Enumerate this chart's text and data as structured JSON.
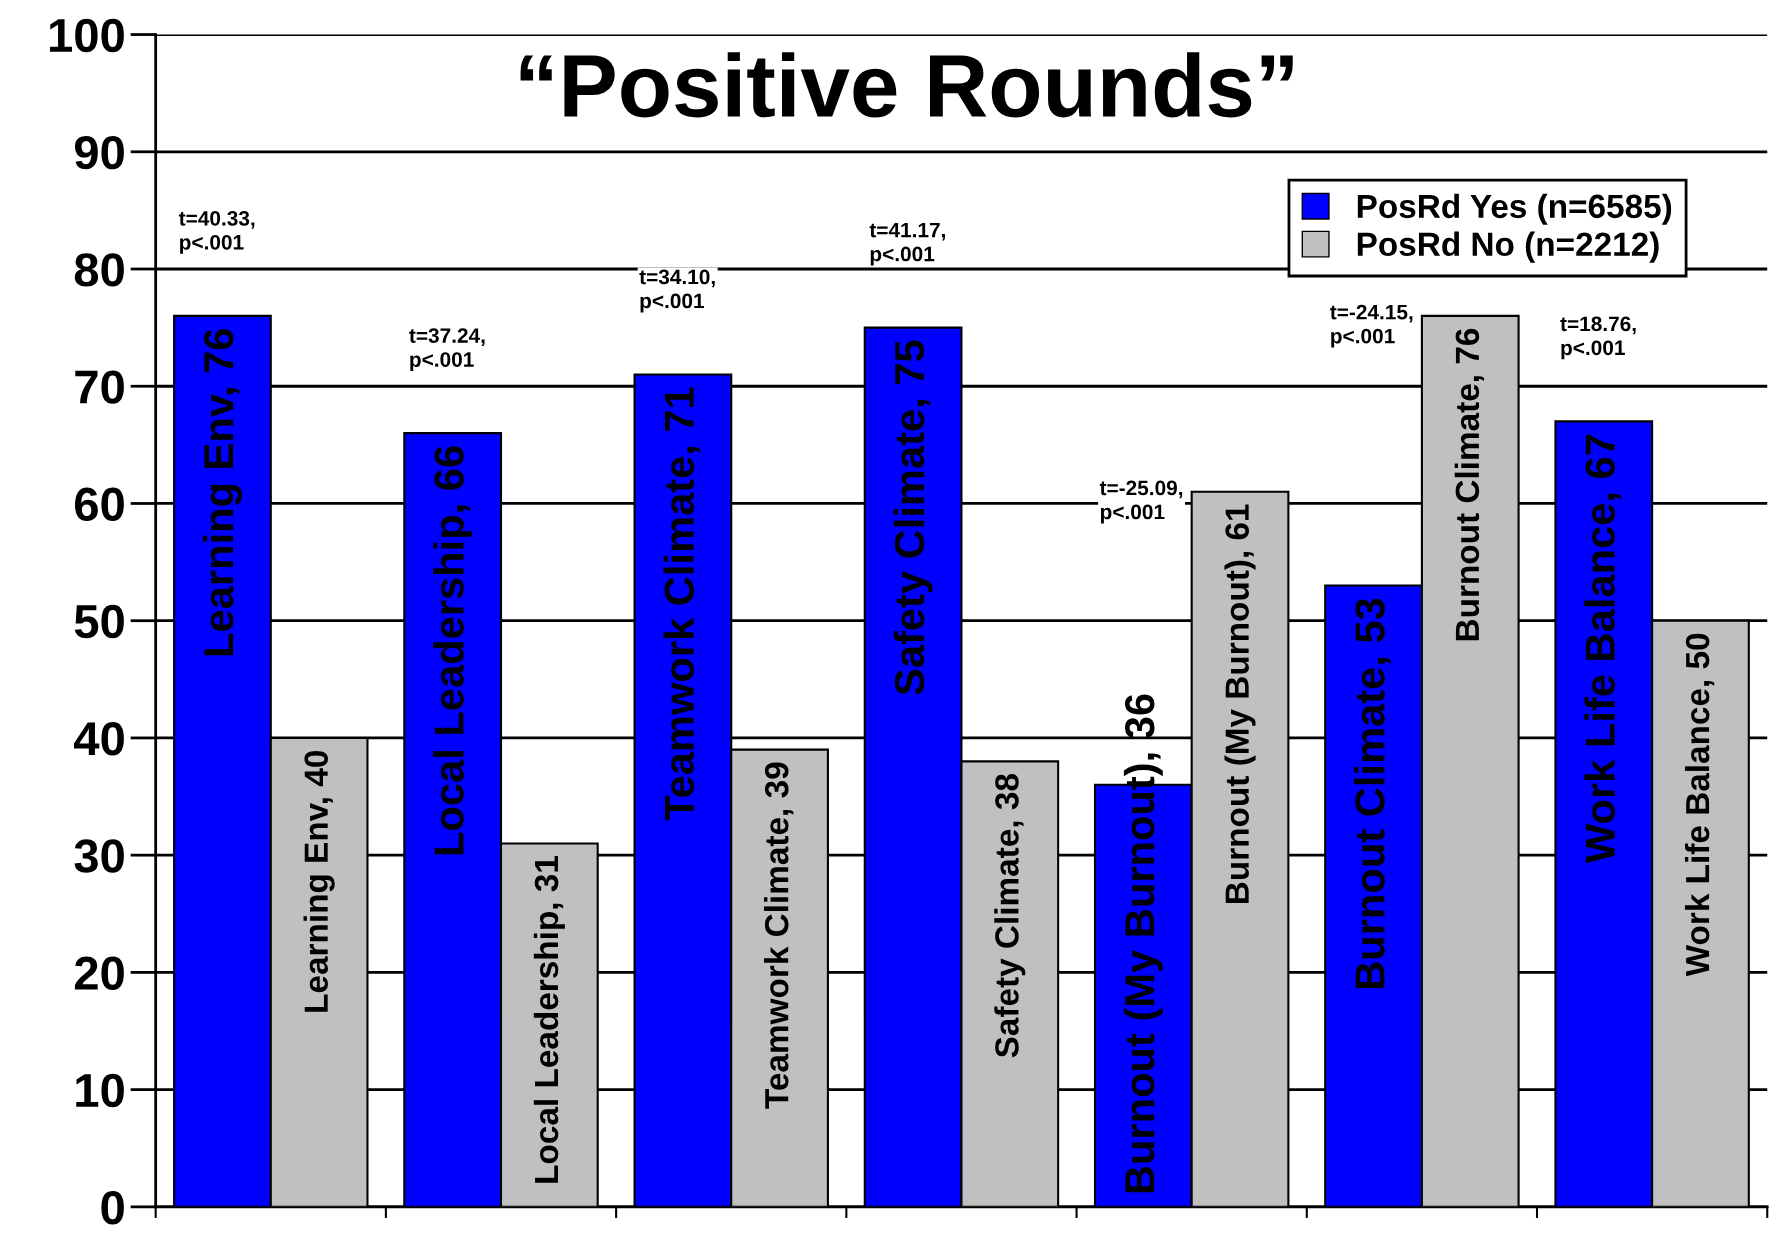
{
  "chart_data": {
    "type": "bar",
    "title": "“Positive Rounds”",
    "categories": [
      null,
      null,
      null,
      null,
      null,
      null,
      null
    ],
    "series": [
      {
        "name": "PosRd Yes (n=6585)",
        "color": "#0000ff",
        "values": [
          76,
          66,
          71,
          75,
          36,
          53,
          67
        ],
        "value_labels": [
          "Learning Env, 76",
          "Local Leadership, 66",
          "Teamwork Climate, 71",
          "Safety Climate, 75",
          "Burnout (My Burnout), 36",
          "Burnout Climate, 53",
          "Work Life Balance, 67"
        ]
      },
      {
        "name": "PosRd No (n=2212)",
        "color": "#c0c0c0",
        "values": [
          40,
          31,
          39,
          38,
          61,
          76,
          50
        ],
        "value_labels": [
          "Learning Env, 40",
          "Local Leadership, 31",
          "Teamwork Climate, 39",
          "Safety Climate, 38",
          "Burnout (My Burnout), 61",
          "Burnout Climate, 76",
          "Work Life Balance, 50"
        ]
      }
    ],
    "annotations": [
      "t=40.33,\np<.001",
      "t=37.24,\np<.001",
      "t=34.10,\np<.001",
      "t=41.17,\np<.001",
      "t=-25.09,\np<.001",
      "t=-24.15,\np<.001",
      "t=18.76,\np<.001"
    ],
    "ylim": [
      0,
      100
    ],
    "yticks": [
      0,
      10,
      20,
      30,
      40,
      50,
      60,
      70,
      80,
      90,
      100
    ],
    "grid": "y",
    "legend": "top right"
  }
}
